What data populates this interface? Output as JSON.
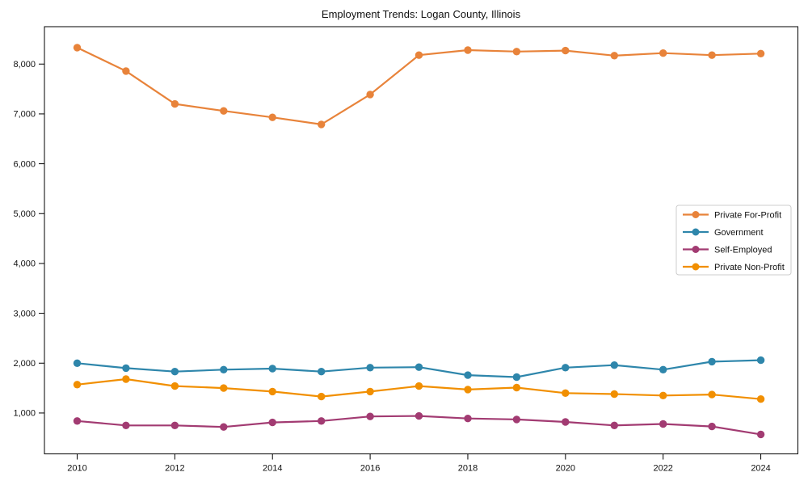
{
  "chart_data": {
    "type": "line",
    "title": "Employment Trends: Logan County, Illinois",
    "xlabel": "",
    "ylabel": "",
    "grid": false,
    "legend_position": "center-right",
    "xlim": [
      2009.33,
      2024.76
    ],
    "ylim": [
      180,
      8750
    ],
    "x": [
      2010,
      2011,
      2012,
      2013,
      2014,
      2015,
      2016,
      2017,
      2018,
      2019,
      2020,
      2021,
      2022,
      2023,
      2024
    ],
    "x_tick_values": [
      2010,
      2012,
      2014,
      2016,
      2018,
      2020,
      2022,
      2024
    ],
    "x_tick_labels": [
      "2010",
      "2012",
      "2014",
      "2016",
      "2018",
      "2020",
      "2022",
      "2024"
    ],
    "y_tick_values": [
      1000,
      2000,
      3000,
      4000,
      5000,
      6000,
      7000,
      8000
    ],
    "y_tick_labels": [
      "1,000",
      "2,000",
      "3,000",
      "4,000",
      "5,000",
      "6,000",
      "7,000",
      "8,000"
    ],
    "series": [
      {
        "name": "Private For-Profit",
        "color": "#E8833A",
        "values": [
          8330,
          7860,
          7200,
          7060,
          6930,
          6790,
          7390,
          8180,
          8280,
          8250,
          8270,
          8170,
          8220,
          8180,
          8210
        ]
      },
      {
        "name": "Government",
        "color": "#2E86AB",
        "values": [
          2000,
          1900,
          1830,
          1870,
          1890,
          1830,
          1910,
          1920,
          1760,
          1720,
          1910,
          1960,
          1870,
          2030,
          2060
        ]
      },
      {
        "name": "Self-Employed",
        "color": "#A23B72",
        "values": [
          840,
          750,
          750,
          720,
          810,
          840,
          930,
          940,
          890,
          870,
          820,
          750,
          780,
          730,
          570
        ]
      },
      {
        "name": "Private Non-Profit",
        "color": "#F18F01",
        "values": [
          1570,
          1680,
          1540,
          1500,
          1430,
          1330,
          1430,
          1540,
          1470,
          1510,
          1400,
          1380,
          1350,
          1370,
          1280
        ]
      }
    ],
    "axis_color": "#000000",
    "legend_border_color": "#cccccc",
    "legend_bg_color": "#ffffff"
  }
}
